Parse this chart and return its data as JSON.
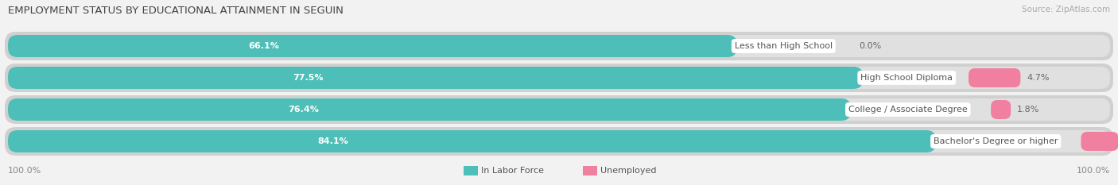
{
  "title": "EMPLOYMENT STATUS BY EDUCATIONAL ATTAINMENT IN SEGUIN",
  "source": "Source: ZipAtlas.com",
  "categories": [
    "Less than High School",
    "High School Diploma",
    "College / Associate Degree",
    "Bachelor's Degree or higher"
  ],
  "in_labor_force": [
    66.1,
    77.5,
    76.4,
    84.1
  ],
  "unemployed": [
    0.0,
    4.7,
    1.8,
    3.4
  ],
  "color_labor": "#4dbfb8",
  "color_unemployed": "#f07fa0",
  "bar_bg_color": "#e0e0e0",
  "bar_bg_outer": "#d0d0d0",
  "title_fontsize": 9.5,
  "source_fontsize": 7.5,
  "label_fontsize": 8,
  "value_fontsize": 8,
  "tick_fontsize": 8,
  "legend_fontsize": 8,
  "left_label": "100.0%",
  "right_label": "100.0%",
  "background_color": "#f2f2f2",
  "bar_row_bg": "#e8e8e8",
  "white": "#ffffff"
}
